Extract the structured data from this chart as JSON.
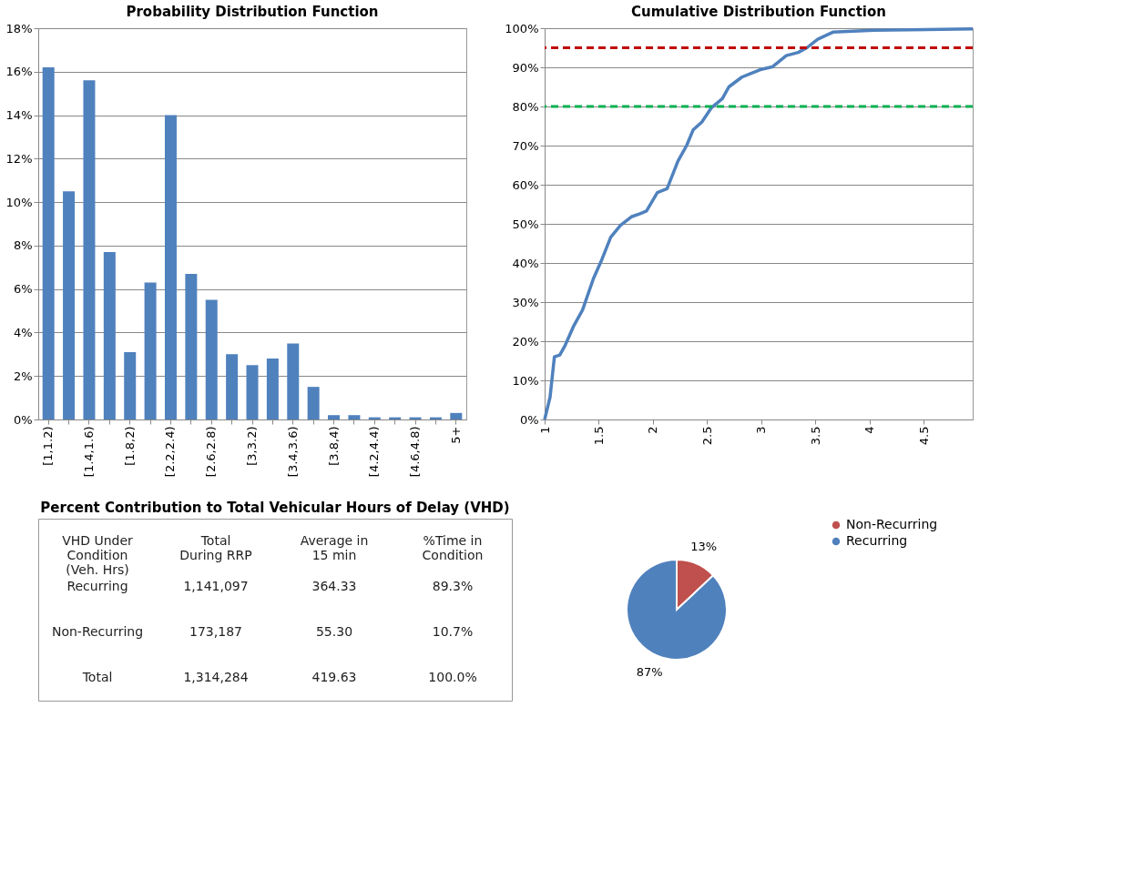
{
  "chart_data": [
    {
      "type": "bar",
      "title": "Probability Distribution Function",
      "categories": [
        "[1,1.2)",
        null,
        "[1.4,1.6)",
        null,
        "[1.8,2)",
        null,
        "[2.2,2.4)",
        null,
        "[2.6,2.8)",
        null,
        "[3,3.2)",
        null,
        "[3.4,3.6)",
        null,
        "[3.8,4)",
        null,
        "[4.2,4.4)",
        null,
        "[4.6,4.8)",
        null,
        "5+"
      ],
      "values": [
        16.2,
        10.5,
        15.6,
        7.7,
        3.1,
        6.3,
        14.0,
        6.7,
        5.5,
        3.0,
        2.5,
        2.8,
        3.5,
        1.5,
        0.2,
        0.2,
        0.1,
        0.1,
        0.1,
        0.1,
        0.3
      ],
      "color": "#4f81bd",
      "ylim": [
        0,
        18
      ],
      "yticks": [
        {
          "value": 0,
          "label": "0%"
        },
        {
          "value": 2,
          "label": "2%"
        },
        {
          "value": 4,
          "label": "4%"
        },
        {
          "value": 6,
          "label": "6%"
        },
        {
          "value": 8,
          "label": "8%"
        },
        {
          "value": 10,
          "label": "10%"
        },
        {
          "value": 12,
          "label": "12%"
        },
        {
          "value": 14,
          "label": "14%"
        },
        {
          "value": 16,
          "label": "16%"
        },
        {
          "value": 18,
          "label": "18%"
        }
      ],
      "grid": "y"
    },
    {
      "type": "line",
      "title": "Cumulative  Distribution Function",
      "x": [
        1,
        1.05,
        1.09,
        1.14,
        1.19,
        1.27,
        1.35,
        1.45,
        1.53,
        1.61,
        1.7,
        1.8,
        1.88,
        1.94,
        2.04,
        2.13,
        2.23,
        2.31,
        2.37,
        2.45,
        2.54,
        2.64,
        2.7,
        2.82,
        2.89,
        2.99,
        3.1,
        3.23,
        3.34,
        3.42,
        3.52,
        3.66,
        4.04,
        4.95
      ],
      "series": [
        {
          "color": "#4f81bd",
          "values": [
            0,
            5.7,
            16,
            16.5,
            19,
            24,
            28,
            36,
            41,
            46.6,
            49.6,
            51.8,
            52.6,
            53.3,
            58,
            59,
            66,
            70,
            74,
            76,
            79.7,
            82,
            85,
            87.5,
            88.3,
            89.4,
            90.1,
            93,
            93.8,
            95,
            97.2,
            99,
            99.5,
            99.8
          ]
        }
      ],
      "xlim": [
        1,
        4.95
      ],
      "xticks": [
        1,
        1.5,
        2,
        2.5,
        3,
        3.5,
        4,
        4.5
      ],
      "ylim": [
        0,
        100
      ],
      "yticks": [
        {
          "value": 0,
          "label": "0%"
        },
        {
          "value": 10,
          "label": "10%"
        },
        {
          "value": 20,
          "label": "20%"
        },
        {
          "value": 30,
          "label": "30%"
        },
        {
          "value": 40,
          "label": "40%"
        },
        {
          "value": 50,
          "label": "50%"
        },
        {
          "value": 60,
          "label": "60%"
        },
        {
          "value": 70,
          "label": "70%"
        },
        {
          "value": 80,
          "label": "80%"
        },
        {
          "value": 90,
          "label": "90%"
        },
        {
          "value": 100,
          "label": "100%"
        }
      ],
      "grid": "y",
      "line_style": "solid",
      "marker": "none",
      "ref_lines": [
        {
          "axis": "y",
          "value": 95,
          "color": "#c00000",
          "line_style": "dashed"
        },
        {
          "axis": "y",
          "value": 80,
          "color": "#00b050",
          "line_style": "dashed"
        }
      ]
    },
    {
      "type": "other",
      "title": "Percent Contribution to Total Vehicular Hours of Delay (VHD)",
      "annotations": [
        "VHD Under Condition (Veh. Hrs)",
        "Total During RRP",
        "Average in 15 min",
        "%Time in Condition",
        "Recurring",
        "1,141,097",
        "364.33",
        "89.3%",
        "Non-Recurring",
        "173,187",
        "55.30",
        "10.7%",
        "Total",
        "1,314,284",
        "419.63",
        "100.0%"
      ]
    },
    {
      "type": "pie",
      "categories": [
        "Non-Recurring",
        "Recurring"
      ],
      "values": [
        13,
        87
      ],
      "colors": [
        "#c0504d",
        "#4f81bd"
      ],
      "value_labels": [
        "13%",
        "87%"
      ],
      "legend": "right"
    }
  ]
}
